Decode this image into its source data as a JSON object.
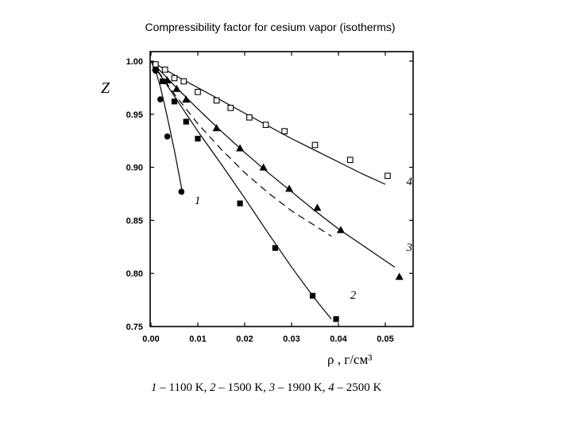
{
  "page": {
    "title": "Compressibility factor for cesium vapor (isotherms)",
    "caption": [
      {
        "num": "1",
        "text": " – 1100 K, "
      },
      {
        "num": "2",
        "text": " – 1500 K, "
      },
      {
        "num": "3",
        "text": " – 1900 K, "
      },
      {
        "num": "4",
        "text": " – 2500 K"
      }
    ]
  },
  "chart_data": {
    "type": "scatter",
    "title": "Compressibility factor for cesium vapor (isotherms)",
    "ylabel": "Z",
    "xlabel": "ρ ,  г/см³",
    "xlim": [
      0,
      0.056
    ],
    "ylim": [
      0.75,
      1.0
    ],
    "x_ticks": [
      "0.00",
      "0.01",
      "0.02",
      "0.03",
      "0.04",
      "0.05"
    ],
    "y_ticks": [
      "0.75",
      "0.80",
      "0.85",
      "0.90",
      "0.95",
      "1.00"
    ],
    "series": [
      {
        "name": "1",
        "temperature": "1100 K",
        "marker": "circle",
        "points": [
          [
            0.001,
            0.991
          ],
          [
            0.002,
            0.964
          ],
          [
            0.0035,
            0.929
          ],
          [
            0.0065,
            0.877
          ]
        ],
        "curve": [
          [
            0.0,
            1.0
          ],
          [
            0.001,
            0.991
          ],
          [
            0.002,
            0.976
          ],
          [
            0.003,
            0.957
          ],
          [
            0.004,
            0.937
          ],
          [
            0.005,
            0.916
          ],
          [
            0.006,
            0.893
          ],
          [
            0.0068,
            0.874
          ]
        ],
        "label": "1",
        "label_at": [
          0.0093,
          0.869
        ]
      },
      {
        "name": "2",
        "temperature": "1500 K",
        "marker": "square",
        "points": [
          [
            0.001,
            0.993
          ],
          [
            0.0025,
            0.981
          ],
          [
            0.005,
            0.962
          ],
          [
            0.0075,
            0.943
          ],
          [
            0.01,
            0.927
          ],
          [
            0.019,
            0.866
          ],
          [
            0.0265,
            0.824
          ],
          [
            0.0345,
            0.779
          ],
          [
            0.0395,
            0.757
          ]
        ],
        "curve": [
          [
            0.0,
            1.0
          ],
          [
            0.005,
            0.967
          ],
          [
            0.01,
            0.934
          ],
          [
            0.015,
            0.903
          ],
          [
            0.02,
            0.871
          ],
          [
            0.025,
            0.838
          ],
          [
            0.03,
            0.806
          ],
          [
            0.035,
            0.776
          ],
          [
            0.0385,
            0.757
          ]
        ],
        "label": "2",
        "label_at": [
          0.0425,
          0.78
        ]
      },
      {
        "name": "3",
        "temperature": "1900 K",
        "marker": "triangle",
        "points": [
          [
            0.001,
            0.994
          ],
          [
            0.0035,
            0.982
          ],
          [
            0.0055,
            0.974
          ],
          [
            0.0075,
            0.964
          ],
          [
            0.014,
            0.937
          ],
          [
            0.019,
            0.918
          ],
          [
            0.024,
            0.9
          ],
          [
            0.0295,
            0.88
          ],
          [
            0.0355,
            0.862
          ],
          [
            0.0405,
            0.841
          ],
          [
            0.053,
            0.797
          ]
        ],
        "curve": [
          [
            0.0,
            1.0
          ],
          [
            0.005,
            0.977
          ],
          [
            0.01,
            0.955
          ],
          [
            0.015,
            0.934
          ],
          [
            0.02,
            0.914
          ],
          [
            0.025,
            0.895
          ],
          [
            0.03,
            0.877
          ],
          [
            0.035,
            0.859
          ],
          [
            0.04,
            0.842
          ],
          [
            0.045,
            0.827
          ],
          [
            0.05,
            0.812
          ],
          [
            0.052,
            0.806
          ]
        ],
        "dashed_curve": [
          [
            0.0,
            1.0
          ],
          [
            0.005,
            0.969
          ],
          [
            0.01,
            0.941
          ],
          [
            0.015,
            0.917
          ],
          [
            0.02,
            0.895
          ],
          [
            0.025,
            0.876
          ],
          [
            0.03,
            0.859
          ],
          [
            0.035,
            0.845
          ],
          [
            0.0385,
            0.835
          ]
        ],
        "label": "3",
        "label_at": [
          0.0545,
          0.825
        ]
      },
      {
        "name": "4",
        "temperature": "2500 K",
        "marker": "open_square",
        "points": [
          [
            0.001,
            0.997
          ],
          [
            0.003,
            0.992
          ],
          [
            0.005,
            0.984
          ],
          [
            0.007,
            0.981
          ],
          [
            0.01,
            0.971
          ],
          [
            0.014,
            0.963
          ],
          [
            0.017,
            0.956
          ],
          [
            0.021,
            0.947
          ],
          [
            0.0245,
            0.94
          ],
          [
            0.0285,
            0.934
          ],
          [
            0.035,
            0.921
          ],
          [
            0.0425,
            0.907
          ],
          [
            0.0505,
            0.892
          ]
        ],
        "curve": [
          [
            0.0,
            1.0
          ],
          [
            0.005,
            0.987
          ],
          [
            0.01,
            0.975
          ],
          [
            0.015,
            0.963
          ],
          [
            0.02,
            0.951
          ],
          [
            0.025,
            0.939
          ],
          [
            0.03,
            0.927
          ],
          [
            0.035,
            0.916
          ],
          [
            0.04,
            0.905
          ],
          [
            0.045,
            0.894
          ],
          [
            0.05,
            0.884
          ]
        ],
        "label": "4",
        "label_at": [
          0.0545,
          0.887
        ]
      }
    ]
  }
}
